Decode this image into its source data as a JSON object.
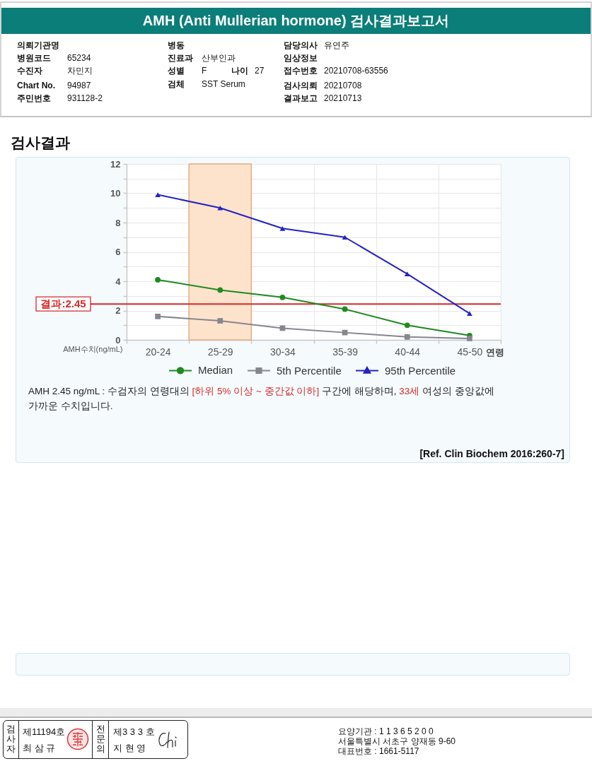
{
  "chart_data": {
    "type": "line",
    "title": "AMH (Anti Mullerian hormone) 검사결과보고서",
    "subtitle": "검사결과",
    "xlabel": "연령",
    "ylabel": "AMH수치(ng/mL)",
    "categories": [
      "20-24",
      "25-29",
      "30-34",
      "35-39",
      "40-44",
      "45-50"
    ],
    "series": [
      {
        "name": "Median",
        "color": "#1f8a1f",
        "marker": "circle",
        "values": [
          4.1,
          3.4,
          2.9,
          2.1,
          1.0,
          0.3
        ]
      },
      {
        "name": "5th Percentile",
        "color": "#86868f",
        "marker": "square",
        "values": [
          1.6,
          1.3,
          0.8,
          0.5,
          0.2,
          0.1
        ]
      },
      {
        "name": "95th Percentile",
        "color": "#2424c0",
        "marker": "triangle",
        "values": [
          9.9,
          9.0,
          7.6,
          7.0,
          4.5,
          1.8
        ]
      }
    ],
    "ylim": [
      0,
      12
    ],
    "yticks": [
      0,
      {
        "value": 1,
        "label": null
      },
      2,
      {
        "value": 3,
        "label": null
      },
      4,
      {
        "value": 5,
        "label": null
      },
      6,
      {
        "value": 7,
        "label": null
      },
      8,
      {
        "value": 9,
        "label": null
      },
      10,
      {
        "value": 11,
        "label": null
      },
      12
    ],
    "grid": true,
    "legend": "bottom",
    "ref_lines": [
      {
        "axis": "y",
        "value": 2.45,
        "label": "결과:2.45",
        "color": "#d62a2a"
      }
    ],
    "bands": [
      {
        "axis": "x",
        "from": "25-29",
        "to": "25-29",
        "color": "#fde3cc"
      }
    ],
    "annotations": [
      "의뢰기관명",
      "병원코드",
      "65234",
      "수진자",
      "차민지",
      "Chart No.",
      "94987",
      "주민번호",
      "931128-2",
      "병동",
      "진료과",
      "산부인과",
      "성별",
      "F",
      "나이",
      "27",
      "검체",
      "SST Serum",
      "담당의사",
      "유연주",
      "임상정보",
      "접수번호",
      "20210708-63556",
      "검사의뢰",
      "20210708",
      "결과보고",
      "20210713",
      "AMH 2.45 ng/mL : 수검자의 연령대의",
      "[하위 5% 이상 ~ 중간값 이하]",
      "구간에 해당하며,",
      "33세",
      "여성의 중앙값에",
      "가까운 수치입니다.",
      "[Ref. Clin Biochem 2016:260-7]",
      "검사자",
      "제11194호",
      "최 삼 규",
      "전문의",
      "제3 3 3 호",
      "지 현 영",
      "요양기관 : 1 1 3 6 5 2 0 0",
      "서울특별시 서초구 양재동 9-60",
      "대표번호 : 1661-5117"
    ]
  }
}
